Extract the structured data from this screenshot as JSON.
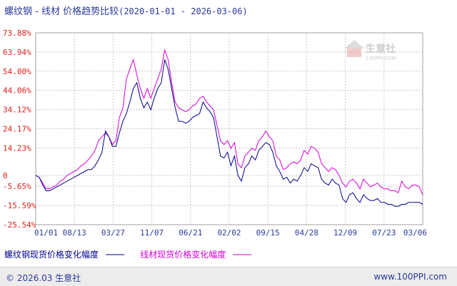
{
  "chart_data": {
    "type": "line",
    "title": "螺纹钢 - 线材 价格趋势比较",
    "date_range": "(2020-01-01 - 2026-03-06)",
    "x_ticks": [
      "01/01",
      "08/13",
      "03/27",
      "11/07",
      "06/21",
      "02/02",
      "09/15",
      "04/28",
      "12/09",
      "07/23",
      "03/06"
    ],
    "y_ticks": [
      "73.88%",
      "63.94%",
      "54.00%",
      "44.06%",
      "34.12%",
      "24.17%",
      "14.23%",
      "0",
      "-5.65%",
      "-15.59%",
      "-25.54%"
    ],
    "y_tick_values": [
      73.88,
      63.94,
      54.0,
      44.06,
      34.12,
      24.17,
      14.23,
      0,
      -5.65,
      -15.59,
      -25.54
    ],
    "ylim": [
      -25.54,
      73.88
    ],
    "grid": true,
    "legend_position": "bottom",
    "series": [
      {
        "name": "螺纹钢现货价格变化幅度",
        "color": "#00008b",
        "values": [
          0,
          -1,
          -5,
          -8,
          -8,
          -7,
          -6,
          -5,
          -4,
          -3,
          -2,
          -1,
          0,
          1,
          2,
          3,
          3,
          5,
          8,
          12,
          23,
          20,
          15,
          15,
          22,
          28,
          32,
          38,
          45,
          48,
          40,
          35,
          38,
          34,
          40,
          45,
          48,
          60,
          55,
          45,
          35,
          28,
          28,
          27,
          28,
          30,
          31,
          32,
          38,
          35,
          33,
          30,
          20,
          10,
          9,
          12,
          5,
          10,
          0,
          -3,
          4,
          6,
          10,
          8,
          13,
          15,
          17,
          16,
          12,
          5,
          2,
          -2,
          -1,
          -4,
          -2,
          -3,
          0,
          4,
          2,
          6,
          5,
          4,
          -2,
          -4,
          -5,
          -2,
          -4,
          -5,
          -12,
          -14,
          -10,
          -9,
          -12,
          -14,
          -10,
          -12,
          -13,
          -13,
          -12,
          -14,
          -14,
          -15,
          -15,
          -16,
          -16,
          -15,
          -15,
          -14,
          -14,
          -14,
          -14,
          -15
        ]
      },
      {
        "name": "线材现货价格变化幅度",
        "color": "#d400d4",
        "values": [
          0,
          -1,
          -4,
          -7,
          -7,
          -6,
          -5,
          -3,
          -2,
          0,
          1,
          2,
          3,
          5,
          6,
          8,
          10,
          13,
          18,
          20,
          22,
          20,
          16,
          18,
          30,
          35,
          50,
          55,
          60,
          52,
          45,
          40,
          45,
          40,
          45,
          50,
          55,
          65,
          60,
          48,
          38,
          35,
          34,
          33,
          34,
          36,
          37,
          40,
          41,
          38,
          36,
          34,
          26,
          18,
          16,
          18,
          14,
          17,
          6,
          4,
          10,
          12,
          14,
          13,
          18,
          20,
          23,
          20,
          18,
          10,
          8,
          3,
          4,
          6,
          7,
          6,
          8,
          13,
          11,
          15,
          14,
          12,
          6,
          4,
          2,
          4,
          3,
          0,
          -4,
          -6,
          -3,
          -2,
          -4,
          -7,
          -2,
          -4,
          -6,
          -5,
          -4,
          -6,
          -7,
          -7,
          -8,
          -8,
          -9,
          -3,
          -6,
          -7,
          -5,
          -5,
          -6,
          -10
        ]
      }
    ]
  },
  "watermark": "生意社",
  "watermark_url": "100PPI.COM",
  "footer": {
    "copyright": "© 2026.03 生意社",
    "site": "www.100PPI.com"
  }
}
